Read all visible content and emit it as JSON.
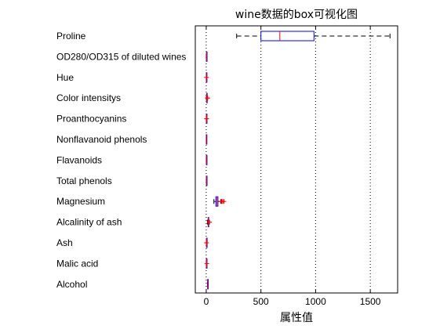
{
  "chart_data": {
    "type": "boxplot",
    "orientation": "horizontal",
    "title": "wine数据的box可视化图",
    "xlabel": "属性值",
    "ylabel": "",
    "xlim": [
      -100,
      1750
    ],
    "xticks": [
      0,
      500,
      1000,
      1500
    ],
    "grid": "vertical-dotted",
    "colors": {
      "box": "#0000ff",
      "median": "#ff0000",
      "whisker": "#000000",
      "outlier": "#ff0000"
    },
    "categories": [
      "Proline",
      "OD280/OD315 of diluted wines",
      "Hue",
      "Color intensitys",
      "Proanthocyanins",
      "Nonflavanoid phenols",
      "Flavanoids",
      "Total phenols",
      "Magnesium",
      "Alcalinity of ash",
      "Ash",
      "Malic acid",
      "Alcohol"
    ],
    "boxes": [
      {
        "name": "Proline",
        "min": 278,
        "q1": 500,
        "median": 673,
        "q3": 985,
        "max": 1680,
        "outliers": []
      },
      {
        "name": "OD280/OD315 of diluted wines",
        "min": 1.27,
        "q1": 1.93,
        "median": 2.78,
        "q3": 3.17,
        "max": 4.0,
        "outliers": []
      },
      {
        "name": "Hue",
        "min": 0.48,
        "q1": 0.78,
        "median": 0.96,
        "q3": 1.12,
        "max": 1.71,
        "outliers": [
          1.71
        ]
      },
      {
        "name": "Color intensitys",
        "min": 1.28,
        "q1": 3.22,
        "median": 4.69,
        "q3": 6.2,
        "max": 10.8,
        "outliers": [
          11.75,
          13.0
        ]
      },
      {
        "name": "Proanthocyanins",
        "min": 0.41,
        "q1": 1.25,
        "median": 1.56,
        "q3": 1.95,
        "max": 2.96,
        "outliers": [
          3.28,
          3.58
        ]
      },
      {
        "name": "Nonflavanoid phenols",
        "min": 0.13,
        "q1": 0.27,
        "median": 0.34,
        "q3": 0.44,
        "max": 0.66,
        "outliers": []
      },
      {
        "name": "Flavanoids",
        "min": 0.34,
        "q1": 1.2,
        "median": 2.13,
        "q3": 2.88,
        "max": 5.08,
        "outliers": []
      },
      {
        "name": "Total phenols",
        "min": 0.98,
        "q1": 1.74,
        "median": 2.36,
        "q3": 2.8,
        "max": 3.88,
        "outliers": []
      },
      {
        "name": "Magnesium",
        "min": 70,
        "q1": 88,
        "median": 98,
        "q3": 107,
        "max": 134,
        "outliers": [
          139,
          142,
          151,
          162
        ]
      },
      {
        "name": "Alcalinity of ash",
        "min": 10.6,
        "q1": 17.2,
        "median": 19.5,
        "q3": 21.5,
        "max": 27.0,
        "outliers": [
          28.5,
          30.0
        ]
      },
      {
        "name": "Ash",
        "min": 1.7,
        "q1": 2.21,
        "median": 2.36,
        "q3": 2.56,
        "max": 3.1,
        "outliers": [
          1.36,
          3.23
        ]
      },
      {
        "name": "Malic acid",
        "min": 0.74,
        "q1": 1.6,
        "median": 1.87,
        "q3": 3.08,
        "max": 5.8,
        "outliers": [
          5.65
        ]
      },
      {
        "name": "Alcohol",
        "min": 11.03,
        "q1": 12.36,
        "median": 13.05,
        "q3": 13.68,
        "max": 14.83,
        "outliers": []
      }
    ]
  }
}
